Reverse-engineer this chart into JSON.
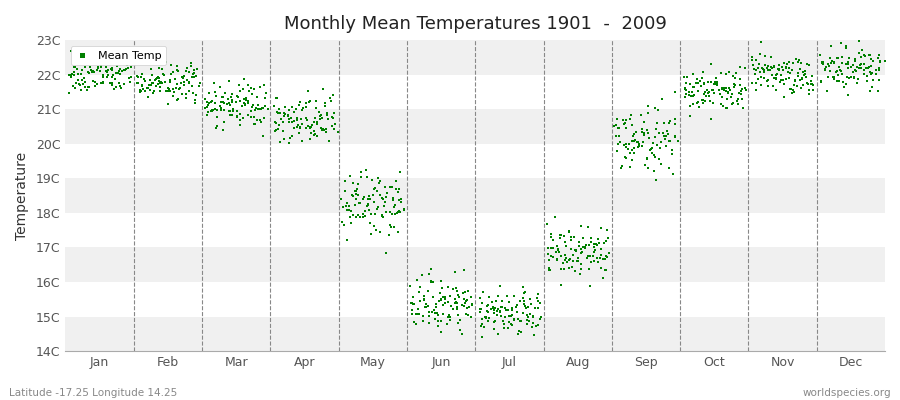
{
  "title": "Monthly Mean Temperatures 1901  -  2009",
  "ylabel": "Temperature",
  "bottom_left": "Latitude -17.25 Longitude 14.25",
  "bottom_right": "worldspecies.org",
  "legend_label": "Mean Temp",
  "marker_color": "#008000",
  "background_color": "#ffffff",
  "plot_bg_color": "#ffffff",
  "band_color_light": "#f0f0f0",
  "band_color_white": "#ffffff",
  "ylim": [
    14,
    23
  ],
  "yticks": [
    14,
    15,
    16,
    17,
    18,
    19,
    20,
    21,
    22,
    23
  ],
  "ytick_labels": [
    "14C",
    "15C",
    "16C",
    "17C",
    "18C",
    "19C",
    "20C",
    "21C",
    "22C",
    "23C"
  ],
  "months": [
    "Jan",
    "Feb",
    "Mar",
    "Apr",
    "May",
    "Jun",
    "Jul",
    "Aug",
    "Sep",
    "Oct",
    "Nov",
    "Dec"
  ],
  "monthly_means": [
    22.0,
    21.75,
    21.1,
    20.65,
    18.2,
    15.35,
    15.05,
    16.8,
    20.1,
    21.55,
    22.0,
    22.2
  ],
  "monthly_stds": [
    0.28,
    0.28,
    0.32,
    0.38,
    0.48,
    0.4,
    0.32,
    0.42,
    0.45,
    0.32,
    0.3,
    0.3
  ],
  "n_years": 109,
  "seed": 42
}
